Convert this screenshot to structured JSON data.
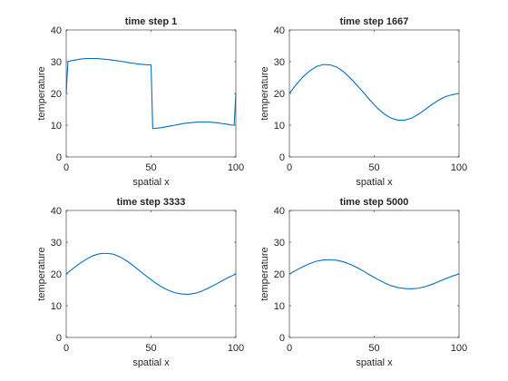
{
  "chart_data": [
    {
      "type": "line",
      "title": "time step 1",
      "xlabel": "spatial x",
      "ylabel": "temperature",
      "xlim": [
        0,
        100
      ],
      "ylim": [
        0,
        40
      ],
      "xticks": [
        "0",
        "50",
        "100"
      ],
      "yticks": [
        "0",
        "10",
        "20",
        "30",
        "40"
      ],
      "grid": false,
      "series": [
        {
          "color": "#0072BD",
          "x": [
            0,
            1,
            2,
            4,
            6,
            8,
            10,
            12,
            14,
            16,
            18,
            20,
            22,
            24,
            26,
            28,
            30,
            32,
            34,
            36,
            38,
            40,
            42,
            44,
            46,
            48,
            50,
            51,
            52,
            54,
            56,
            58,
            60,
            62,
            64,
            66,
            68,
            70,
            72,
            74,
            76,
            78,
            80,
            82,
            84,
            86,
            88,
            90,
            92,
            94,
            96,
            98,
            99,
            100
          ],
          "y": [
            20,
            30,
            30.2,
            30.4,
            30.6,
            30.8,
            30.9,
            31,
            31,
            31,
            31,
            30.9,
            30.8,
            30.7,
            30.6,
            30.4,
            30.3,
            30.1,
            30,
            29.8,
            29.6,
            29.5,
            29.3,
            29.2,
            29.1,
            29,
            29,
            9,
            9,
            9.1,
            9.2,
            9.4,
            9.6,
            9.8,
            10,
            10.2,
            10.4,
            10.6,
            10.7,
            10.8,
            10.9,
            11,
            11,
            11,
            11,
            10.9,
            10.8,
            10.7,
            10.5,
            10.4,
            10.2,
            10,
            10,
            20
          ]
        }
      ]
    },
    {
      "type": "line",
      "title": "time step 1667",
      "xlabel": "spatial x",
      "ylabel": "temperature",
      "xlim": [
        0,
        100
      ],
      "ylim": [
        0,
        40
      ],
      "xticks": [
        "0",
        "50",
        "100"
      ],
      "yticks": [
        "0",
        "10",
        "20",
        "30",
        "40"
      ],
      "grid": false,
      "series": [
        {
          "color": "#0072BD",
          "x": [
            0,
            4,
            8,
            12,
            16,
            20,
            24,
            28,
            32,
            36,
            40,
            44,
            48,
            52,
            56,
            60,
            64,
            68,
            72,
            76,
            80,
            84,
            88,
            92,
            96,
            100
          ],
          "y": [
            20,
            22.8,
            25.2,
            27.1,
            28.5,
            29.1,
            29.0,
            28.3,
            26.8,
            24.8,
            22.5,
            20.1,
            17.6,
            15.3,
            13.5,
            12.2,
            11.6,
            11.6,
            12.2,
            13.4,
            14.9,
            16.5,
            17.9,
            19.0,
            19.6,
            20
          ]
        }
      ]
    },
    {
      "type": "line",
      "title": "time step 3333",
      "xlabel": "spatial x",
      "ylabel": "temperature",
      "xlim": [
        0,
        100
      ],
      "ylim": [
        0,
        40
      ],
      "xticks": [
        "0",
        "50",
        "100"
      ],
      "yticks": [
        "0",
        "10",
        "20",
        "30",
        "40"
      ],
      "grid": false,
      "series": [
        {
          "color": "#0072BD",
          "x": [
            0,
            4,
            8,
            12,
            16,
            20,
            24,
            28,
            32,
            36,
            40,
            44,
            48,
            52,
            56,
            60,
            64,
            68,
            72,
            76,
            80,
            84,
            88,
            92,
            96,
            100
          ],
          "y": [
            20,
            21.7,
            23.3,
            24.7,
            25.8,
            26.4,
            26.5,
            26.2,
            25.3,
            24.0,
            22.4,
            20.7,
            19.0,
            17.4,
            16.0,
            14.9,
            14.1,
            13.7,
            13.6,
            13.9,
            14.6,
            15.6,
            16.7,
            17.9,
            19.0,
            20
          ]
        }
      ]
    },
    {
      "type": "line",
      "title": "time step 5000",
      "xlabel": "spatial x",
      "ylabel": "temperature",
      "xlim": [
        0,
        100
      ],
      "ylim": [
        0,
        40
      ],
      "xticks": [
        "0",
        "50",
        "100"
      ],
      "yticks": [
        "0",
        "10",
        "20",
        "30",
        "40"
      ],
      "grid": false,
      "series": [
        {
          "color": "#0072BD",
          "x": [
            0,
            4,
            8,
            12,
            16,
            20,
            24,
            28,
            32,
            36,
            40,
            44,
            48,
            52,
            56,
            60,
            64,
            68,
            72,
            76,
            80,
            84,
            88,
            92,
            96,
            100
          ],
          "y": [
            20,
            21.2,
            22.3,
            23.3,
            24.0,
            24.4,
            24.5,
            24.3,
            23.8,
            23.0,
            22.0,
            20.8,
            19.5,
            18.3,
            17.2,
            16.3,
            15.7,
            15.4,
            15.3,
            15.5,
            16.0,
            16.7,
            17.6,
            18.5,
            19.3,
            20
          ]
        }
      ]
    }
  ]
}
